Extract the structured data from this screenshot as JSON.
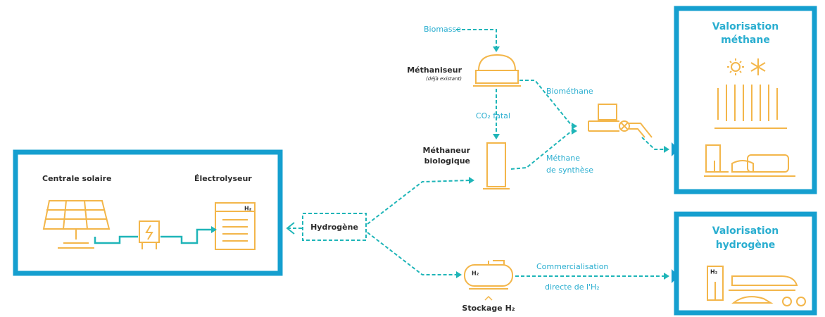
{
  "production": {
    "solar_label": "Centrale solaire",
    "electrolyser_label": "Électrolyseur",
    "electrolyser_tag": "H₂"
  },
  "hub": {
    "label": "Hydrogène"
  },
  "biomass": {
    "label": "Biomasse"
  },
  "methaniseur": {
    "label": "Méthaniseur",
    "note": "(déjà existant)"
  },
  "co2": {
    "label": "CO₂ fatal"
  },
  "methaneur": {
    "lines": [
      "Méthaneur",
      "biologique"
    ]
  },
  "biomethane": {
    "label": "Biométhane"
  },
  "synthetic_methane": {
    "lines": [
      "Méthane",
      "de synthèse"
    ]
  },
  "storage": {
    "label": "Stockage H₂",
    "tag": "H₂"
  },
  "commercial": {
    "lines": [
      "Commercialisation",
      "directe de l'H₂"
    ]
  },
  "valorisation_methane": {
    "lines": [
      "Valorisation",
      "méthane"
    ]
  },
  "valorisation_hydrogen": {
    "lines": [
      "Valorisation",
      "hydrogène"
    ],
    "pump_tag": "H₂"
  }
}
